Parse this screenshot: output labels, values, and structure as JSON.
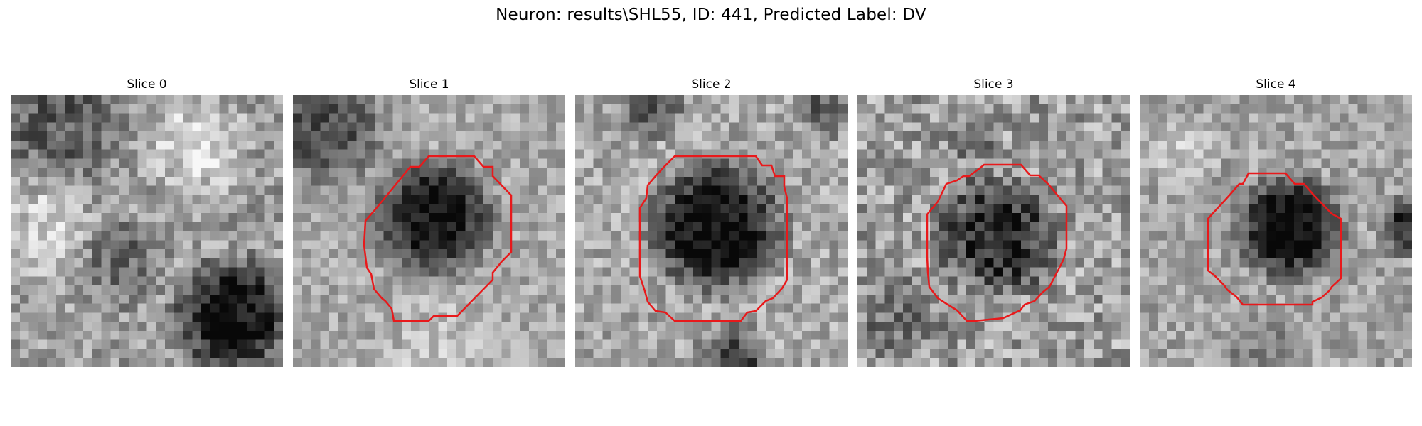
{
  "figure": {
    "title": "Neuron: results\\SHL55, ID: 441, Predicted Label: DV"
  },
  "panels": [
    {
      "title": "Slice 0",
      "has_contour": false,
      "contour_color": "#e8191b"
    },
    {
      "title": "Slice 1",
      "has_contour": true,
      "contour_color": "#e8191b"
    },
    {
      "title": "Slice 2",
      "has_contour": true,
      "contour_color": "#e8191b"
    },
    {
      "title": "Slice 3",
      "has_contour": true,
      "contour_color": "#e8191b"
    },
    {
      "title": "Slice 4",
      "has_contour": true,
      "contour_color": "#e8191b"
    }
  ],
  "colormap": "gray"
}
